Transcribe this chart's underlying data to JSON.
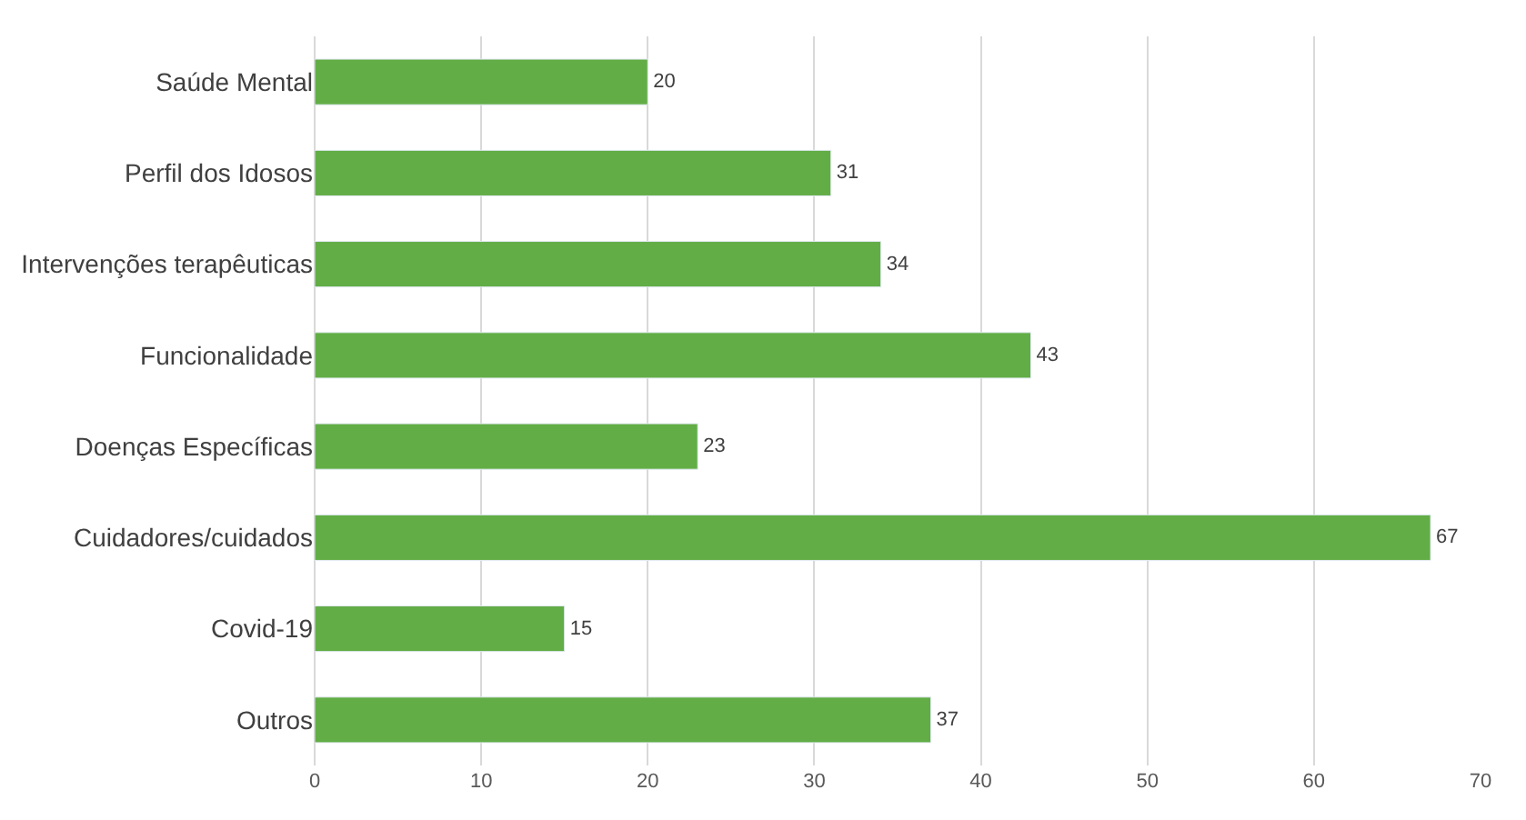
{
  "chart_data": {
    "type": "bar",
    "orientation": "horizontal",
    "categories": [
      "Saúde Mental",
      "Perfil dos Idosos",
      "Intervenções terapêuticas",
      "Funcionalidade",
      "Doenças Específicas",
      "Cuidadores/cuidados",
      "Covid-19",
      "Outros"
    ],
    "values": [
      20,
      31,
      34,
      43,
      23,
      67,
      15,
      37
    ],
    "color": "#62ad45",
    "xlim": [
      0,
      70
    ],
    "xticks": [
      0,
      10,
      20,
      30,
      40,
      50,
      60,
      70
    ],
    "grid": "x",
    "data_labels": true
  }
}
